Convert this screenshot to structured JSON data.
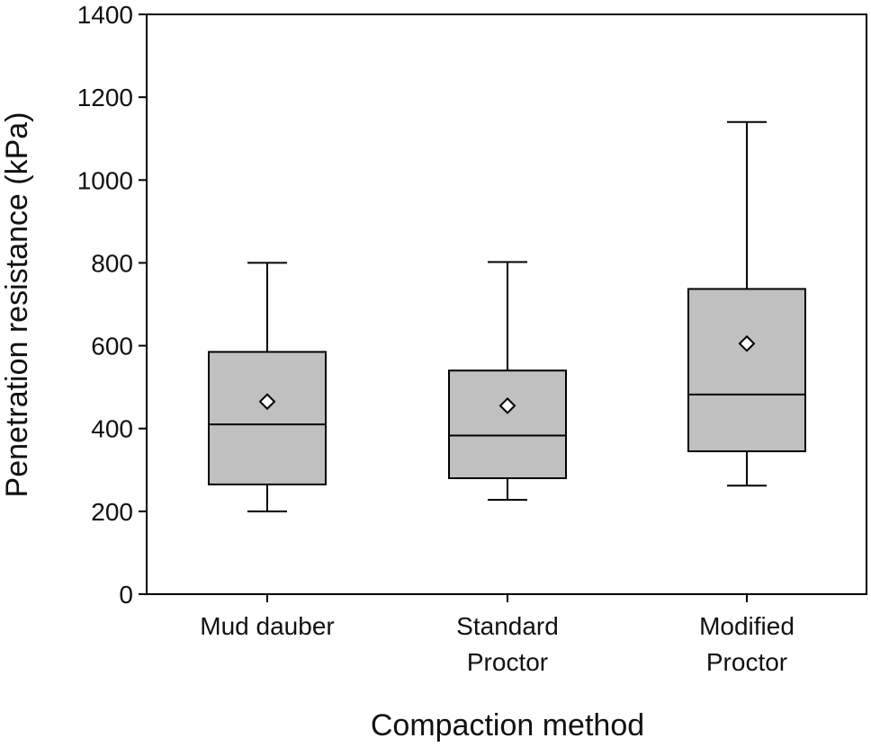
{
  "chart_data": {
    "type": "box",
    "title": "",
    "xlabel": "Compaction method",
    "ylabel": "Penetration resistance (kPa)",
    "ylim": [
      0,
      1400
    ],
    "yticks": [
      0,
      200,
      400,
      600,
      800,
      1000,
      1200,
      1400
    ],
    "grid": false,
    "legend": "none",
    "colors": {
      "box_fill": "#c0c0c0",
      "stroke": "#000000",
      "mean_fill": "#ffffff"
    },
    "categories": [
      {
        "lines": [
          "Mud dauber"
        ]
      },
      {
        "lines": [
          "Standard",
          "Proctor"
        ]
      },
      {
        "lines": [
          "Modified",
          "Proctor"
        ]
      }
    ],
    "boxes": [
      {
        "whisker_low": 200,
        "q1": 265,
        "median": 410,
        "q3": 585,
        "whisker_high": 800,
        "mean": 465
      },
      {
        "whisker_low": 228,
        "q1": 280,
        "median": 383,
        "q3": 540,
        "whisker_high": 802,
        "mean": 455
      },
      {
        "whisker_low": 262,
        "q1": 345,
        "median": 482,
        "q3": 737,
        "whisker_high": 1140,
        "mean": 605
      }
    ]
  }
}
